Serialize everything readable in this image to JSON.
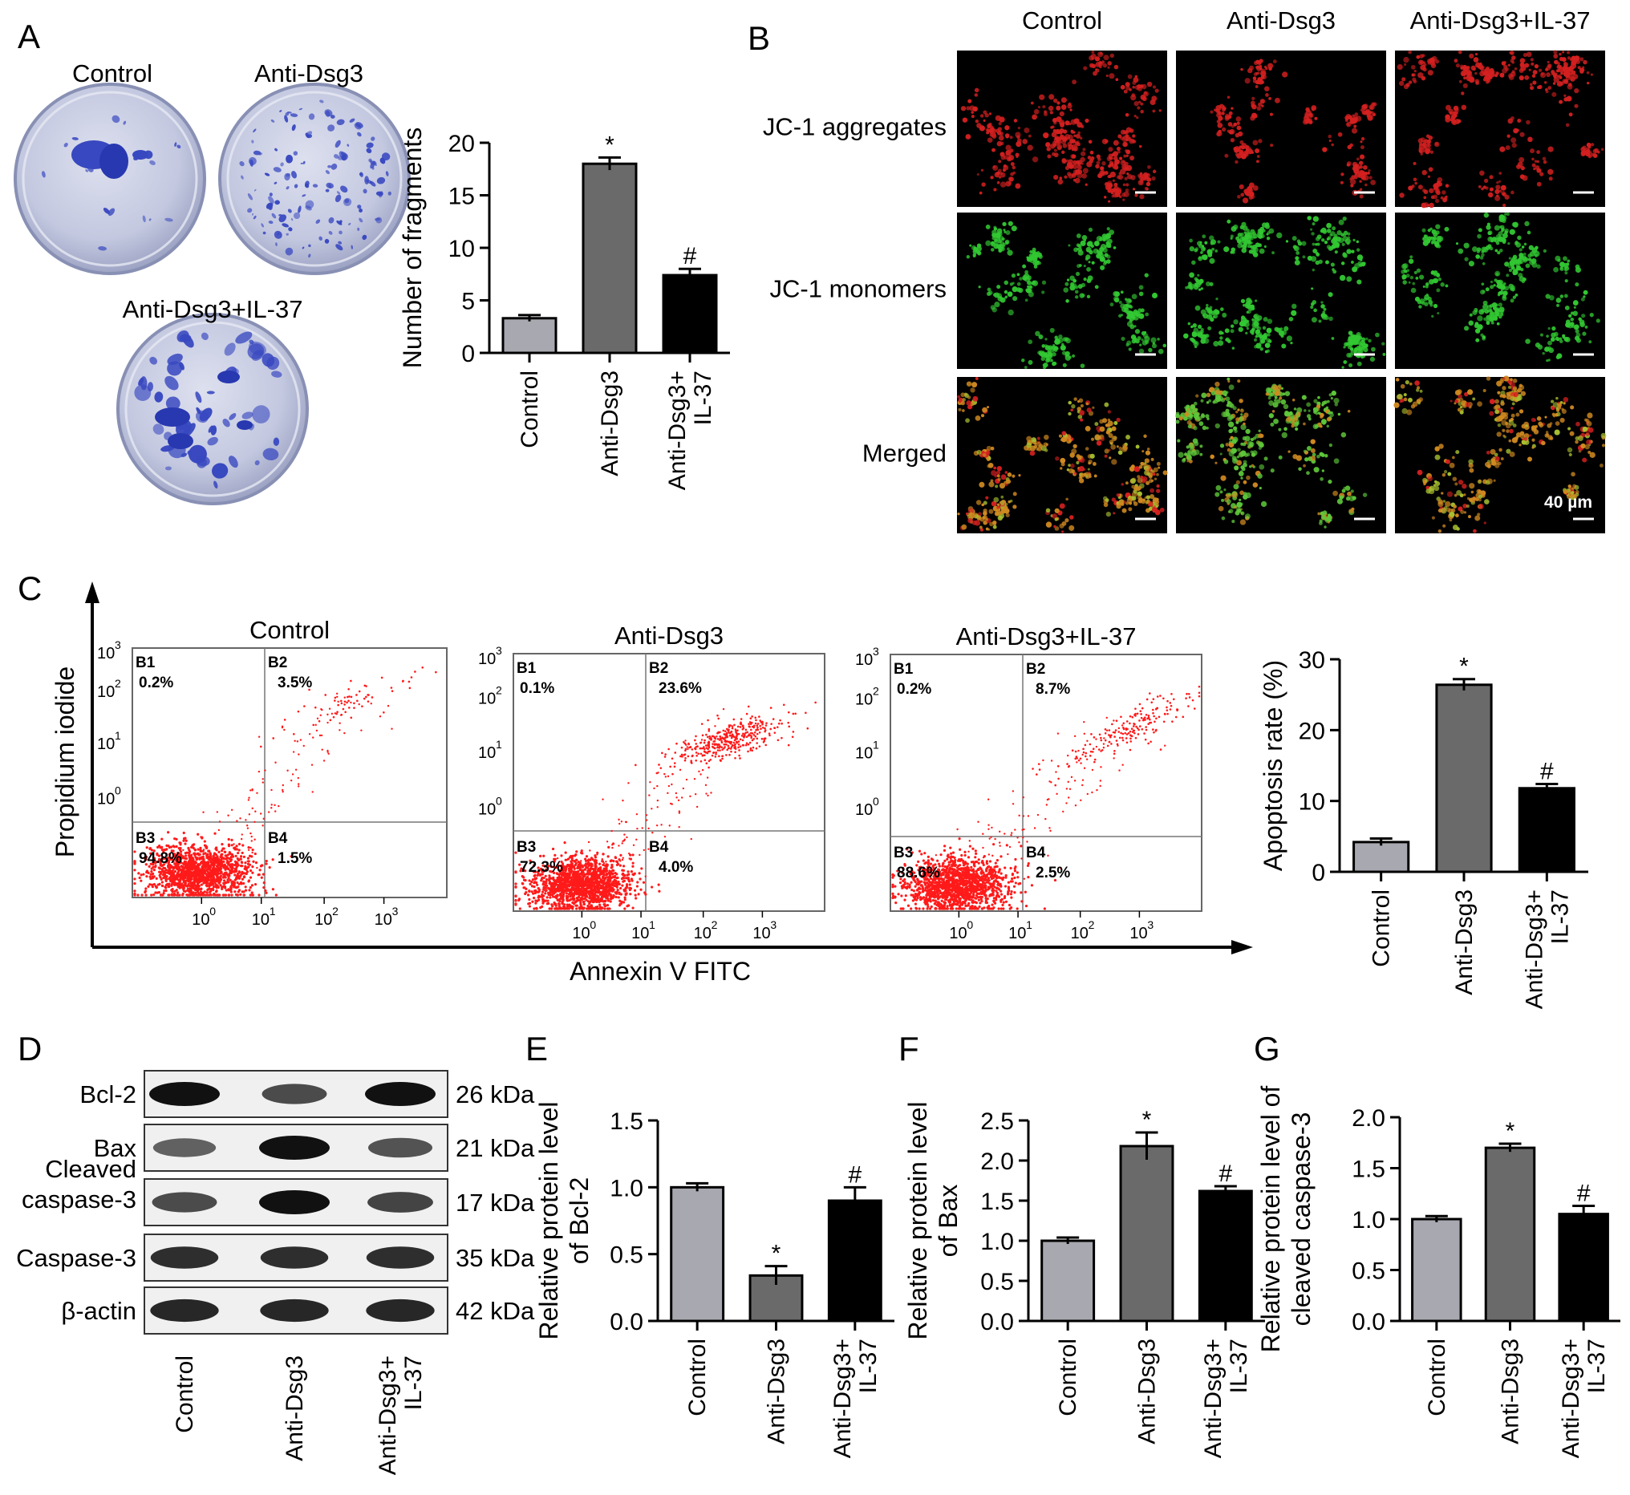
{
  "colors": {
    "control": "#a8a8b0",
    "anti": "#6a6a6a",
    "combo": "#000000",
    "dish_bg": "#c7cbe2",
    "stain": "#3848c0",
    "dot": "#ff1a1a",
    "fluor_red": "#d42020",
    "fluor_green": "#32c832",
    "fluor_merge": "#d08a20"
  },
  "panelA": {
    "letter": "A",
    "dish_labels": [
      "Control",
      "Anti-Dsg3",
      "Anti-Dsg3+IL-37"
    ]
  },
  "panelB": {
    "letter": "B",
    "columns": [
      "Control",
      "Anti-Dsg3",
      "Anti-Dsg3+IL-37"
    ],
    "rows": [
      "JC-1 aggregates",
      "JC-1 monomers",
      "Merged"
    ],
    "scale_label": "40 µm"
  },
  "panelC": {
    "letter": "C",
    "y_title": "Propidium iodide",
    "x_title": "Annexin V FITC",
    "plots": [
      {
        "title": "Control",
        "q": [
          "B1",
          "B2",
          "B3",
          "B4"
        ],
        "pct": [
          "0.2%",
          "3.5%",
          "94.8%",
          "1.5%"
        ]
      },
      {
        "title": "Anti-Dsg3",
        "q": [
          "B1",
          "B2",
          "B3",
          "B4"
        ],
        "pct": [
          "0.1%",
          "23.6%",
          "72.3%",
          "4.0%"
        ]
      },
      {
        "title": "Anti-Dsg3+IL-37",
        "q": [
          "B1",
          "B2",
          "B3",
          "B4"
        ],
        "pct": [
          "0.2%",
          "8.7%",
          "88.6%",
          "2.5%"
        ]
      }
    ],
    "ticks": [
      "10",
      "10",
      "10",
      "10"
    ],
    "tick_exps": [
      "0",
      "1",
      "2",
      "3"
    ]
  },
  "panelD": {
    "letter": "D",
    "bands": [
      {
        "name": "Bcl-2",
        "kda": "26 kDa"
      },
      {
        "name": "Bax",
        "kda": "21 kDa"
      },
      {
        "name": "Cleaved caspase-3",
        "kda": "17 kDa"
      },
      {
        "name": "Caspase-3",
        "kda": "35 kDa"
      },
      {
        "name": "β-actin",
        "kda": "42 kDa"
      }
    ],
    "lanes": [
      "Control",
      "Anti-Dsg3",
      "Anti-Dsg3+ IL-37"
    ]
  },
  "chart_data": [
    {
      "id": "A",
      "type": "bar",
      "categories": [
        "Control",
        "Anti-Dsg3",
        "Anti-Dsg3+ IL-37"
      ],
      "values": [
        3.3,
        18.0,
        7.4
      ],
      "errors": [
        0.3,
        0.6,
        0.6
      ],
      "ylabel": "Number of fragments",
      "ylim": [
        0,
        20
      ],
      "yticks": [
        0,
        5,
        10,
        15,
        20
      ],
      "markers": [
        "",
        "*",
        "#"
      ]
    },
    {
      "id": "C",
      "type": "bar",
      "categories": [
        "Control",
        "Anti-Dsg3",
        "Anti-Dsg3+ IL-37"
      ],
      "values": [
        4.2,
        26.4,
        11.8
      ],
      "errors": [
        0.5,
        0.8,
        0.6
      ],
      "ylabel": "Apoptosis rate (%)",
      "ylim": [
        0,
        30
      ],
      "yticks": [
        0,
        10,
        20,
        30
      ],
      "markers": [
        "",
        "*",
        "#"
      ]
    },
    {
      "id": "E",
      "type": "bar",
      "categories": [
        "Control",
        "Anti-Dsg3",
        "Anti-Dsg3+ IL-37"
      ],
      "values": [
        1.0,
        0.34,
        0.9
      ],
      "errors": [
        0.03,
        0.07,
        0.1
      ],
      "ylabel": "Relative protein level of Bcl-2",
      "ylim": [
        0,
        1.5
      ],
      "yticks": [
        0.0,
        0.5,
        1.0,
        1.5
      ],
      "markers": [
        "",
        "*",
        "#"
      ]
    },
    {
      "id": "F",
      "type": "bar",
      "categories": [
        "Control",
        "Anti-Dsg3",
        "Anti-Dsg3+ IL-37"
      ],
      "values": [
        1.0,
        2.18,
        1.62
      ],
      "errors": [
        0.04,
        0.17,
        0.06
      ],
      "ylabel": "Relative protein level of Bax",
      "ylim": [
        0,
        2.5
      ],
      "yticks": [
        0.0,
        0.5,
        1.0,
        1.5,
        2.0,
        2.5
      ],
      "markers": [
        "",
        "*",
        "#"
      ]
    },
    {
      "id": "G",
      "type": "bar",
      "categories": [
        "Control",
        "Anti-Dsg3",
        "Anti-Dsg3+ IL-37"
      ],
      "values": [
        1.0,
        1.7,
        1.05
      ],
      "errors": [
        0.03,
        0.04,
        0.08
      ],
      "ylabel": "Relative protein level of cleaved caspase-3",
      "ylim": [
        0,
        2.0
      ],
      "yticks": [
        0.0,
        0.5,
        1.0,
        1.5,
        2.0
      ],
      "markers": [
        "",
        "*",
        "#"
      ]
    }
  ]
}
